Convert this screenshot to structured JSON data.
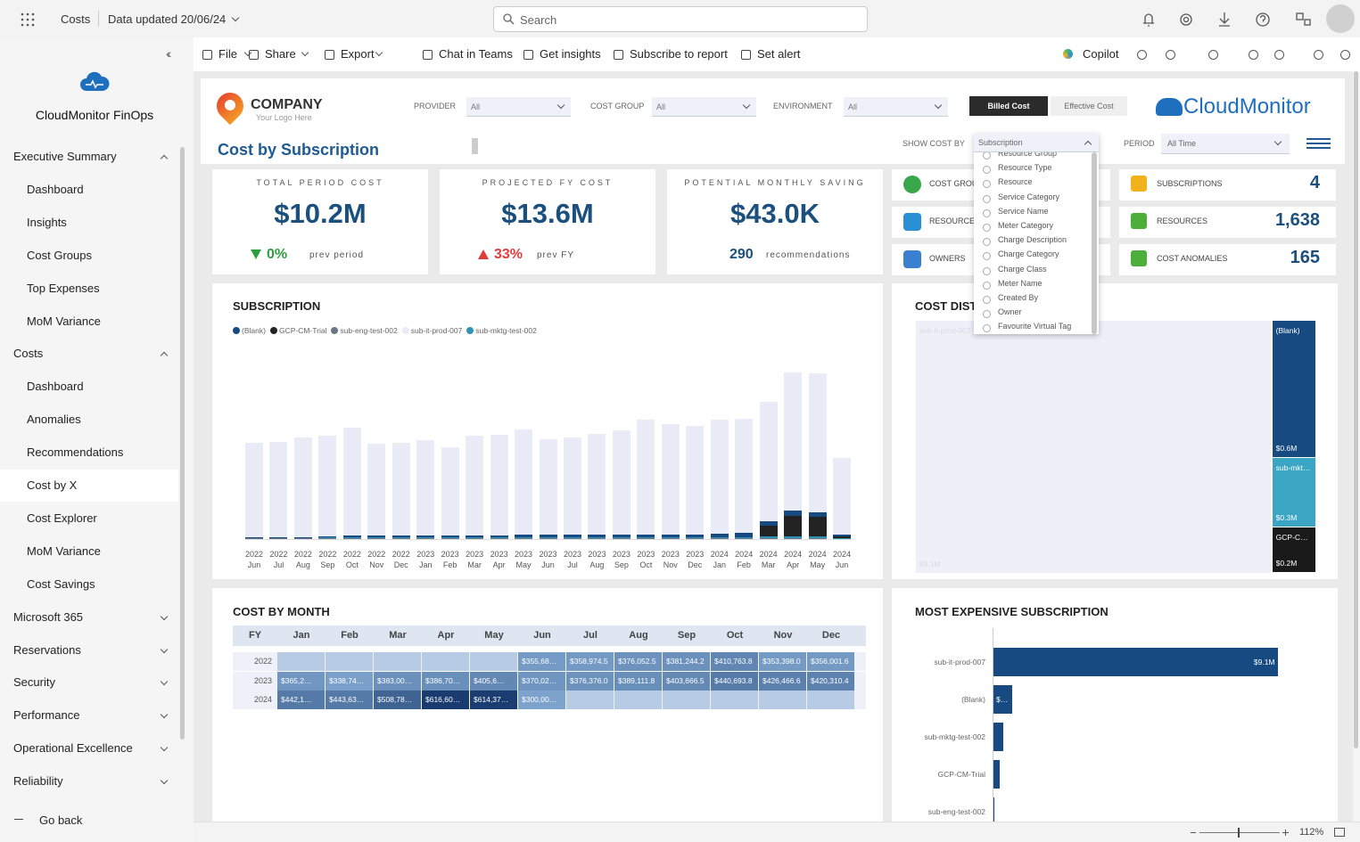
{
  "topbar": {
    "app": "Costs",
    "updated": "Data updated 20/06/24",
    "search": "Search"
  },
  "toolbar": {
    "left": [
      {
        "label": "File",
        "menu": true
      },
      {
        "label": "Share",
        "menu": true
      },
      {
        "label": "Export",
        "menu": true
      },
      {
        "label": "Chat in Teams",
        "menu": false
      },
      {
        "label": "Get insights",
        "menu": false
      },
      {
        "label": "Subscribe to report",
        "menu": false
      },
      {
        "label": "Set alert",
        "menu": false
      }
    ],
    "copilot": "Copilot"
  },
  "sidebar": {
    "title": "CloudMonitor FinOps",
    "items": [
      {
        "label": "Executive Summary",
        "level": 0,
        "expanded": true
      },
      {
        "label": "Dashboard",
        "level": 1
      },
      {
        "label": "Insights",
        "level": 1
      },
      {
        "label": "Cost Groups",
        "level": 1
      },
      {
        "label": "Top Expenses",
        "level": 1
      },
      {
        "label": "MoM Variance",
        "level": 1
      },
      {
        "label": "Costs",
        "level": 0,
        "expanded": true
      },
      {
        "label": "Dashboard",
        "level": 1
      },
      {
        "label": "Anomalies",
        "level": 1
      },
      {
        "label": "Recommendations",
        "level": 1
      },
      {
        "label": "Cost by X",
        "level": 1,
        "selected": true
      },
      {
        "label": "Cost Explorer",
        "level": 1
      },
      {
        "label": "MoM Variance",
        "level": 1
      },
      {
        "label": "Cost Savings",
        "level": 1
      },
      {
        "label": "Microsoft 365",
        "level": 0,
        "expanded": false
      },
      {
        "label": "Reservations",
        "level": 0,
        "expanded": false
      },
      {
        "label": "Security",
        "level": 0,
        "expanded": false
      },
      {
        "label": "Performance",
        "level": 0,
        "expanded": false
      },
      {
        "label": "Operational Excellence",
        "level": 0,
        "expanded": false
      },
      {
        "label": "Reliability",
        "level": 0,
        "expanded": false
      }
    ],
    "go_back": "Go back"
  },
  "report": {
    "logo": {
      "name": "COMPANY",
      "tagline": "Your Logo Here"
    },
    "page_title": "Cost by Subscription",
    "filters": [
      {
        "label": "PROVIDER",
        "value": "All"
      },
      {
        "label": "COST GROUP",
        "value": "All"
      },
      {
        "label": "ENVIRONMENT",
        "value": "All"
      }
    ],
    "cost_toggle": [
      "Billed Cost",
      "Effective Cost"
    ],
    "brand": "CloudMonitor",
    "show_cost_by": {
      "label": "SHOW COST BY",
      "value": "Subscription",
      "options": [
        "Resource Group",
        "Resource Type",
        "Resource",
        "Service Category",
        "Service Name",
        "Meter Category",
        "Charge Description",
        "Charge Category",
        "Charge Class",
        "Meter Name",
        "Created By",
        "Owner",
        "Favourite Virtual Tag"
      ]
    },
    "period": {
      "label": "PERIOD",
      "value": "All Time"
    },
    "kpis": [
      {
        "label": "TOTAL PERIOD COST",
        "value": "$10.2M",
        "change": "0%",
        "trend": "down",
        "trend_color": "#2e9e3f",
        "note": "prev period"
      },
      {
        "label": "PROJECTED FY COST",
        "value": "$13.6M",
        "change": "33%",
        "trend": "up",
        "trend_color": "#e03a3a",
        "note": "prev FY"
      },
      {
        "label": "POTENTIAL MONTHLY SAVING",
        "value": "$43.0K",
        "count": "290",
        "note": "recommendations"
      }
    ],
    "stats_left": [
      {
        "label": "COST GROUPS",
        "color": "#3aa84a"
      },
      {
        "label": "RESOURCE GROUPS",
        "color": "#2b8fd6"
      },
      {
        "label": "OWNERS",
        "color": "#3b7fd0"
      }
    ],
    "stats_right": [
      {
        "label": "SUBSCRIPTIONS",
        "value": "4",
        "color": "#f2b21b"
      },
      {
        "label": "RESOURCES",
        "value": "1,638",
        "color": "#4caf3a"
      },
      {
        "label": "COST ANOMALIES",
        "value": "165",
        "color": "#4caf3a"
      }
    ],
    "cost_by_month": {
      "title": "COST BY MONTH",
      "columns": [
        "FY",
        "Jan",
        "Feb",
        "Mar",
        "Apr",
        "May",
        "Jun",
        "Jul",
        "Aug",
        "Sep",
        "Oct",
        "Nov",
        "Dec"
      ],
      "rows": [
        [
          "2022",
          null,
          null,
          null,
          null,
          null,
          "$355,68…",
          "$358,974.5",
          "$376,052.5",
          "$381,244.2",
          "$410,763.8",
          "$353,398.0",
          "$356,001.6"
        ],
        [
          "2023",
          "$365,2…",
          "$338,74…",
          "$383,00…",
          "$386,70…",
          "$405,6…",
          "$370,02…",
          "$376,376.0",
          "$389,111.8",
          "$403,666.5",
          "$440,693.8",
          "$426,466.6",
          "$420,310.4"
        ],
        [
          "2024",
          "$442,1…",
          "$443,63…",
          "$508,78…",
          "$616,60…",
          "$614,37…",
          "$300,00…",
          null,
          null,
          null,
          null,
          null,
          null
        ]
      ]
    }
  },
  "chart_data": [
    {
      "type": "bar",
      "stacked": true,
      "title": "SUBSCRIPTION",
      "categories": [
        "2022 Jun",
        "2022 Jul",
        "2022 Aug",
        "2022 Sep",
        "2022 Oct",
        "2022 Nov",
        "2022 Dec",
        "2023 Jan",
        "2023 Feb",
        "2023 Mar",
        "2023 Apr",
        "2023 May",
        "2023 Jun",
        "2023 Jul",
        "2023 Aug",
        "2023 Sep",
        "2023 Oct",
        "2023 Nov",
        "2023 Dec",
        "2024 Jan",
        "2024 Feb",
        "2024 Mar",
        "2024 Apr",
        "2024 May",
        "2024 Jun"
      ],
      "series": [
        {
          "name": "(Blank)",
          "color": "#174a80",
          "values": [
            1,
            1,
            2,
            5,
            6,
            6,
            6,
            6,
            6,
            7,
            7,
            8,
            8,
            8,
            9,
            9,
            10,
            10,
            10,
            12,
            14,
            16,
            20,
            18,
            6
          ]
        },
        {
          "name": "GCP-CM-Trial",
          "color": "#222222",
          "values": [
            0,
            0,
            0,
            0,
            0,
            0,
            0,
            0,
            0,
            0,
            0,
            0,
            0,
            0,
            0,
            0,
            0,
            0,
            0,
            0,
            0,
            40,
            75,
            70,
            5
          ]
        },
        {
          "name": "sub-eng-test-002",
          "color": "#6b7785",
          "values": [
            3,
            3,
            3,
            3,
            3,
            3,
            3,
            3,
            3,
            3,
            3,
            3,
            3,
            3,
            3,
            3,
            3,
            3,
            3,
            3,
            3,
            3,
            3,
            3,
            1
          ]
        },
        {
          "name": "sub-it-prod-007",
          "color": "#e9ecf6",
          "values": [
            349.7,
            353.0,
            369.1,
            370.2,
            398.8,
            341.4,
            344.0,
            353.2,
            326.7,
            369.0,
            372.7,
            390.6,
            355.0,
            361.4,
            373.1,
            387.7,
            422.7,
            408.4,
            402.3,
            422.1,
            421.6,
            443.7,
            510.6,
            515.4,
            285.0
          ]
        },
        {
          "name": "sub-mktg-test-002",
          "color": "#2f93b8",
          "values": [
            2,
            2,
            2,
            3,
            3,
            3,
            3,
            3,
            3,
            4,
            4,
            4,
            4,
            4,
            4,
            4,
            5,
            5,
            5,
            5,
            5,
            6,
            8,
            8,
            3
          ]
        }
      ]
    },
    {
      "type": "treemap",
      "title": "COST DISTRIBUTION",
      "categories": [
        "sub-it-prod-007",
        "(Blank)",
        "sub-mktg-test-002",
        "GCP-CM-Trial"
      ],
      "values": [
        9.1,
        0.6,
        0.3,
        0.2
      ],
      "value_labels": [
        "$9.1M",
        "$0.6M",
        "$0.3M",
        "$0.2M"
      ],
      "colors": [
        "#eef0f8",
        "#174a80",
        "#3aa6c4",
        "#1a1a1a"
      ]
    },
    {
      "type": "hbar",
      "title": "MOST EXPENSIVE SUBSCRIPTION",
      "categories": [
        "sub-it-prod-007",
        "(Blank)",
        "sub-mktg-test-002",
        "GCP-CM-Trial",
        "sub-eng-test-002"
      ],
      "values": [
        9.1,
        0.6,
        0.3,
        0.2,
        0.02
      ],
      "value_labels": [
        "$9.1M",
        "$0.6M",
        null,
        null,
        null
      ],
      "xlim": [
        0,
        10
      ],
      "color": "#174a80"
    }
  ],
  "statusbar": {
    "zoom": "112%"
  }
}
